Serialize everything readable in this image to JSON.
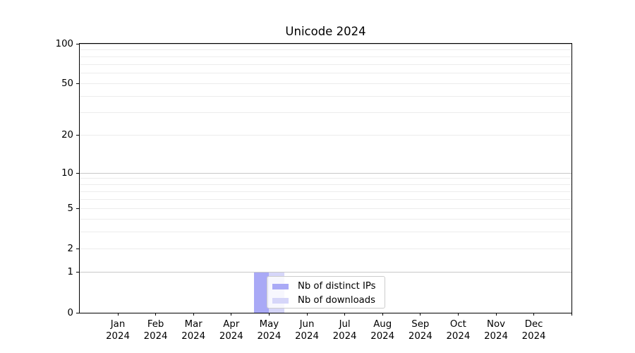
{
  "chart_data": {
    "type": "bar",
    "title": "Unicode 2024",
    "x_tick_months": [
      "Jan",
      "Feb",
      "Mar",
      "Apr",
      "May",
      "Jun",
      "Jul",
      "Aug",
      "Sep",
      "Oct",
      "Nov",
      "Dec"
    ],
    "x_tick_year": "2024",
    "y_ticks": [
      0,
      1,
      2,
      5,
      10,
      20,
      50,
      100
    ],
    "y_scale": "log1p",
    "ylim": [
      0,
      100
    ],
    "grid": {
      "major_values": [
        1,
        10,
        100
      ],
      "minor_values": [
        2,
        3,
        4,
        5,
        6,
        7,
        8,
        9,
        20,
        30,
        40,
        50,
        60,
        70,
        80,
        90
      ]
    },
    "legend_position": "lower center-left, overlapping May bar",
    "series": [
      {
        "name": "Nb of distinct IPs",
        "color": "#a9a9f6",
        "values": [
          0,
          0,
          0,
          0,
          1,
          0,
          0,
          0,
          0,
          0,
          0,
          0
        ]
      },
      {
        "name": "Nb of downloads",
        "color": "#d6d6f9",
        "values": [
          0,
          0,
          0,
          0,
          1,
          0,
          0,
          0,
          0,
          0,
          0,
          0
        ]
      }
    ]
  },
  "colors": {
    "spine": "#000000",
    "grid_major": "#c8c8c8",
    "grid_minor": "#ececec",
    "legend_bg": "rgba(255,255,255,0.8)",
    "legend_border": "#cccccc",
    "text": "#000000"
  }
}
